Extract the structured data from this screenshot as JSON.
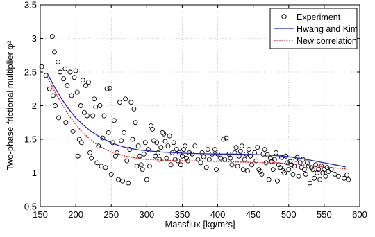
{
  "chart_data": {
    "type": "scatter",
    "xlabel": "Massflux [kg/m²s]",
    "ylabel": "Two-phase frictional multiplier φ²",
    "xlim": [
      150,
      600
    ],
    "ylim": [
      0.5,
      3.5
    ],
    "x_ticks": [
      150,
      200,
      250,
      300,
      350,
      400,
      450,
      500,
      550,
      600
    ],
    "y_ticks": [
      0.5,
      1,
      1.5,
      2,
      2.5,
      3,
      3.5
    ],
    "x_tick_labels": [
      "150",
      "200",
      "250",
      "300",
      "350",
      "400",
      "450",
      "500",
      "550",
      "600"
    ],
    "y_tick_labels": [
      "0.5",
      "1",
      "1.5",
      "2",
      "2.5",
      "3",
      "3.5"
    ],
    "grid": "dotted",
    "legend_position": "top-right",
    "legend": [
      "Experiment",
      "Hwang and Kim",
      "New correlation"
    ],
    "colors": {
      "experiment": "#000000",
      "hwang_kim": "#1f1fd0",
      "new_correlation": "#e01818"
    },
    "series": [
      {
        "name": "Experiment",
        "kind": "markers",
        "points": [
          [
            152,
            2.58
          ],
          [
            158,
            2.45
          ],
          [
            163,
            2.25
          ],
          [
            167,
            3.03
          ],
          [
            170,
            2.8
          ],
          [
            168,
            2.15
          ],
          [
            171,
            2.0
          ],
          [
            175,
            2.65
          ],
          [
            178,
            2.5
          ],
          [
            176,
            1.82
          ],
          [
            183,
            2.4
          ],
          [
            185,
            2.55
          ],
          [
            188,
            2.3
          ],
          [
            186,
            1.75
          ],
          [
            192,
            2.5
          ],
          [
            194,
            2.15
          ],
          [
            196,
            1.62
          ],
          [
            198,
            2.42
          ],
          [
            200,
            2.52
          ],
          [
            202,
            2.2
          ],
          [
            203,
            1.25
          ],
          [
            205,
            1.5
          ],
          [
            207,
            2.0
          ],
          [
            208,
            1.45
          ],
          [
            210,
            2.38
          ],
          [
            212,
            1.9
          ],
          [
            214,
            2.3
          ],
          [
            216,
            1.85
          ],
          [
            218,
            2.35
          ],
          [
            220,
            1.3
          ],
          [
            222,
            1.22
          ],
          [
            224,
            1.85
          ],
          [
            226,
            2.1
          ],
          [
            228,
            1.98
          ],
          [
            230,
            1.15
          ],
          [
            232,
            1.4
          ],
          [
            234,
            2.0
          ],
          [
            236,
            1.1
          ],
          [
            238,
            1.52
          ],
          [
            240,
            1.85
          ],
          [
            242,
            1.08
          ],
          [
            244,
            2.25
          ],
          [
            246,
            1.6
          ],
          [
            248,
            2.26
          ],
          [
            250,
            0.98
          ],
          [
            252,
            1.45
          ],
          [
            254,
            1.78
          ],
          [
            256,
            1.25
          ],
          [
            258,
            1.3
          ],
          [
            260,
            0.9
          ],
          [
            262,
            2.05
          ],
          [
            264,
            1.48
          ],
          [
            266,
            0.88
          ],
          [
            268,
            1.6
          ],
          [
            270,
            2.1
          ],
          [
            272,
            1.18
          ],
          [
            274,
            0.85
          ],
          [
            276,
            1.35
          ],
          [
            278,
            2.05
          ],
          [
            280,
            1.5
          ],
          [
            282,
            1.95
          ],
          [
            284,
            1.75
          ],
          [
            286,
            1.1
          ],
          [
            288,
            1.4
          ],
          [
            290,
            1.25
          ],
          [
            292,
            1.12
          ],
          [
            294,
            1.05
          ],
          [
            296,
            1.28
          ],
          [
            298,
            1.45
          ],
          [
            300,
            0.9
          ],
          [
            302,
            1.35
          ],
          [
            304,
            1.1
          ],
          [
            306,
            1.7
          ],
          [
            308,
            1.65
          ],
          [
            310,
            1.48
          ],
          [
            312,
            1.25
          ],
          [
            314,
            1.45
          ],
          [
            316,
            1.3
          ],
          [
            318,
            1.2
          ],
          [
            320,
            1.38
          ],
          [
            322,
            1.6
          ],
          [
            324,
            1.58
          ],
          [
            326,
            1.47
          ],
          [
            328,
            1.22
          ],
          [
            330,
            1.4
          ],
          [
            332,
            1.55
          ],
          [
            334,
            1.12
          ],
          [
            336,
            1.3
          ],
          [
            338,
            1.45
          ],
          [
            340,
            1.2
          ],
          [
            342,
            1.35
          ],
          [
            344,
            1.18
          ],
          [
            346,
            1.3
          ],
          [
            348,
            1.12
          ],
          [
            350,
            1.25
          ],
          [
            352,
            1.35
          ],
          [
            354,
            1.4
          ],
          [
            356,
            1.22
          ],
          [
            358,
            1.18
          ],
          [
            360,
            1.3
          ],
          [
            364,
            1.28
          ],
          [
            368,
            1.4
          ],
          [
            372,
            1.2
          ],
          [
            376,
            1.15
          ],
          [
            378,
            1.3
          ],
          [
            380,
            1.24
          ],
          [
            384,
            1.08
          ],
          [
            386,
            1.35
          ],
          [
            388,
            1.2
          ],
          [
            392,
            1.28
          ],
          [
            396,
            1.35
          ],
          [
            398,
            1.05
          ],
          [
            400,
            1.28
          ],
          [
            404,
            1.22
          ],
          [
            408,
            1.5
          ],
          [
            410,
            1.2
          ],
          [
            412,
            1.52
          ],
          [
            416,
            1.28
          ],
          [
            418,
            1.22
          ],
          [
            420,
            1.12
          ],
          [
            424,
            1.3
          ],
          [
            426,
            1.38
          ],
          [
            428,
            1.1
          ],
          [
            430,
            1.25
          ],
          [
            432,
            1.32
          ],
          [
            434,
            1.4
          ],
          [
            436,
            1.05
          ],
          [
            438,
            1.2
          ],
          [
            440,
            1.28
          ],
          [
            442,
            1.03
          ],
          [
            444,
            1.35
          ],
          [
            446,
            1.25
          ],
          [
            448,
            1.12
          ],
          [
            452,
            1.3
          ],
          [
            454,
            1.18
          ],
          [
            456,
            1.38
          ],
          [
            458,
            1.05
          ],
          [
            460,
            1.02
          ],
          [
            462,
            0.98
          ],
          [
            464,
            1.28
          ],
          [
            466,
            1.35
          ],
          [
            468,
            1.15
          ],
          [
            470,
            1.27
          ],
          [
            472,
            0.9
          ],
          [
            474,
            1.22
          ],
          [
            476,
            1.17
          ],
          [
            478,
            1.05
          ],
          [
            480,
            1.2
          ],
          [
            482,
            1.3
          ],
          [
            484,
            0.88
          ],
          [
            486,
            1.12
          ],
          [
            488,
            1.08
          ],
          [
            490,
            1.23
          ],
          [
            492,
            1.03
          ],
          [
            494,
            1.0
          ],
          [
            496,
            1.25
          ],
          [
            498,
            1.15
          ],
          [
            500,
            1.05
          ],
          [
            502,
            1.17
          ],
          [
            504,
            1.12
          ],
          [
            506,
            0.98
          ],
          [
            508,
            1.1
          ],
          [
            510,
            1.2
          ],
          [
            512,
            1.23
          ],
          [
            514,
            0.95
          ],
          [
            516,
            1.15
          ],
          [
            518,
            1.08
          ],
          [
            520,
            1.2
          ],
          [
            522,
            1.05
          ],
          [
            524,
            0.98
          ],
          [
            526,
            1.15
          ],
          [
            528,
            1.1
          ],
          [
            530,
            0.85
          ],
          [
            532,
            1.08
          ],
          [
            534,
            1.05
          ],
          [
            536,
            0.92
          ],
          [
            538,
            1.12
          ],
          [
            540,
            1.0
          ],
          [
            542,
            1.05
          ],
          [
            544,
            0.9
          ],
          [
            546,
            1.1
          ],
          [
            548,
            1.0
          ],
          [
            550,
            1.05
          ],
          [
            552,
            0.95
          ],
          [
            554,
            1.08
          ],
          [
            556,
            1.02
          ],
          [
            560,
            1.05
          ],
          [
            565,
            0.98
          ],
          [
            570,
            0.95
          ],
          [
            578,
            0.92
          ],
          [
            582,
            0.97
          ],
          [
            584,
            0.9
          ]
        ]
      },
      {
        "name": "Hwang and Kim",
        "kind": "line",
        "points": [
          [
            160,
            2.48
          ],
          [
            170,
            2.28
          ],
          [
            180,
            2.1
          ],
          [
            190,
            1.95
          ],
          [
            200,
            1.82
          ],
          [
            210,
            1.72
          ],
          [
            220,
            1.63
          ],
          [
            230,
            1.56
          ],
          [
            240,
            1.5
          ],
          [
            250,
            1.45
          ],
          [
            260,
            1.41
          ],
          [
            270,
            1.38
          ],
          [
            280,
            1.36
          ],
          [
            290,
            1.34
          ],
          [
            300,
            1.33
          ],
          [
            320,
            1.31
          ],
          [
            340,
            1.3
          ],
          [
            360,
            1.29
          ],
          [
            380,
            1.285
          ],
          [
            400,
            1.28
          ],
          [
            420,
            1.28
          ],
          [
            440,
            1.275
          ],
          [
            460,
            1.27
          ],
          [
            480,
            1.26
          ],
          [
            500,
            1.24
          ],
          [
            520,
            1.21
          ],
          [
            540,
            1.17
          ],
          [
            560,
            1.13
          ],
          [
            580,
            1.09
          ]
        ]
      },
      {
        "name": "New correlation",
        "kind": "line",
        "points": [
          [
            160,
            2.43
          ],
          [
            170,
            2.22
          ],
          [
            180,
            2.03
          ],
          [
            190,
            1.86
          ],
          [
            200,
            1.72
          ],
          [
            210,
            1.6
          ],
          [
            220,
            1.5
          ],
          [
            230,
            1.42
          ],
          [
            240,
            1.36
          ],
          [
            250,
            1.31
          ],
          [
            260,
            1.28
          ],
          [
            270,
            1.25
          ],
          [
            280,
            1.23
          ],
          [
            290,
            1.21
          ],
          [
            300,
            1.2
          ],
          [
            320,
            1.19
          ],
          [
            340,
            1.18
          ],
          [
            360,
            1.18
          ],
          [
            380,
            1.175
          ],
          [
            400,
            1.17
          ],
          [
            420,
            1.165
          ],
          [
            440,
            1.16
          ],
          [
            460,
            1.155
          ],
          [
            480,
            1.15
          ],
          [
            500,
            1.14
          ],
          [
            520,
            1.12
          ],
          [
            540,
            1.1
          ],
          [
            560,
            1.08
          ],
          [
            580,
            1.06
          ]
        ]
      }
    ]
  }
}
